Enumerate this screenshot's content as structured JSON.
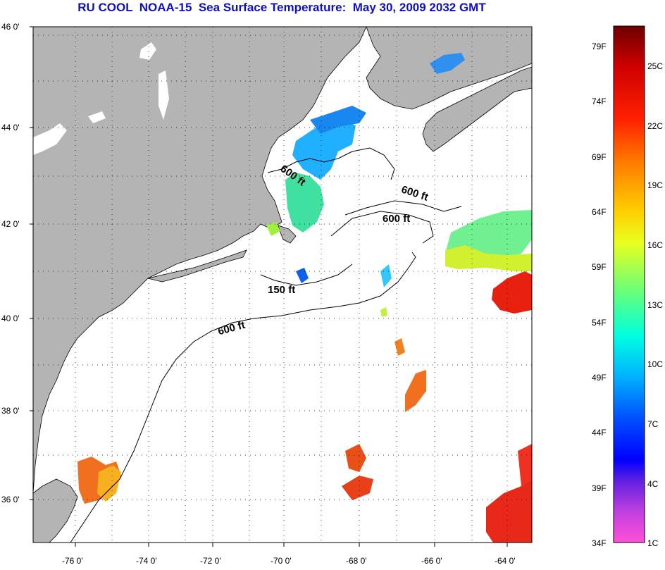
{
  "title": "RU COOL  NOAA-15  Sea Surface Temperature:  May 30, 2009 2032 GMT",
  "map": {
    "lat_labels": [
      "46 0'",
      "44 0'",
      "42 0'",
      "40 0'",
      "38 0'",
      "36 0'"
    ],
    "lon_labels": [
      "-76 0'",
      "-74 0'",
      "-72 0'",
      "-70 0'",
      "-68 0'",
      "-66 0'",
      "-64 0'"
    ],
    "contour_labels": [
      "600 ft",
      "600 ft",
      "600 ft",
      "150 ft",
      "600 ft"
    ],
    "land_color": "#b4b4b4",
    "water_color": "#ffffff",
    "grid": "dotted"
  },
  "colorbar": {
    "fahrenheit_labels": [
      "79F",
      "74F",
      "69F",
      "64F",
      "59F",
      "54F",
      "49F",
      "44F",
      "39F",
      "34F"
    ],
    "celsius_labels": [
      "25C",
      "22C",
      "19C",
      "16C",
      "13C",
      "10C",
      "7C",
      "4C",
      "1C"
    ],
    "colors_top_to_bottom": [
      "#7a0000",
      "#ff0000",
      "#ff8000",
      "#ffff00",
      "#80ff40",
      "#00ffff",
      "#0080ff",
      "#0000ff",
      "#8040ff",
      "#ff40d0"
    ]
  }
}
